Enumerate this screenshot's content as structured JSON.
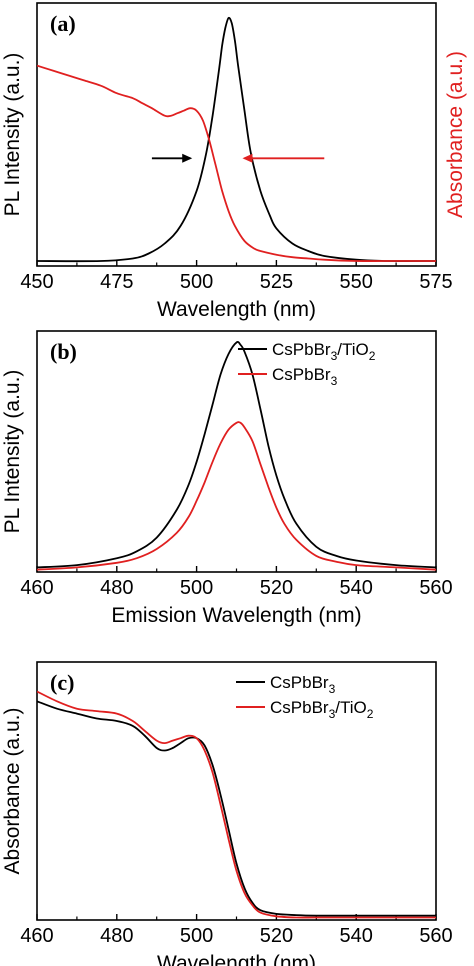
{
  "chart_data": [
    {
      "type": "line",
      "panel_label": "(a)",
      "xlabel": "Wavelength (nm)",
      "ylabel": "PL Intensity (a.u.)",
      "ylabel_right": "Absorbance (a.u.)",
      "xlim": [
        450,
        575
      ],
      "xticks": [
        "450",
        "475",
        "500",
        "525",
        "550",
        "575"
      ],
      "ylim": [
        0,
        1.05
      ],
      "series": [
        {
          "color": "#000000",
          "x": [
            450,
            470,
            480,
            485,
            490,
            495,
            500,
            503,
            505,
            507,
            508,
            509,
            510,
            511,
            512,
            513,
            515,
            517,
            520,
            523,
            525,
            530,
            535,
            540,
            550,
            560,
            575
          ],
          "y": [
            0.02,
            0.02,
            0.03,
            0.05,
            0.09,
            0.16,
            0.3,
            0.45,
            0.6,
            0.78,
            0.88,
            0.95,
            0.99,
            0.97,
            0.9,
            0.8,
            0.62,
            0.45,
            0.3,
            0.2,
            0.15,
            0.09,
            0.06,
            0.04,
            0.025,
            0.02,
            0.02
          ]
        },
        {
          "color": "#e02020",
          "x": [
            450,
            455,
            460,
            465,
            470,
            475,
            480,
            483,
            486,
            490,
            492,
            494,
            496,
            498,
            500,
            502,
            504,
            506,
            508,
            510,
            512,
            515,
            518,
            520,
            525,
            530,
            535,
            540,
            550,
            560,
            575
          ],
          "y": [
            0.8,
            0.78,
            0.76,
            0.74,
            0.72,
            0.69,
            0.67,
            0.65,
            0.63,
            0.6,
            0.6,
            0.61,
            0.62,
            0.63,
            0.62,
            0.58,
            0.5,
            0.4,
            0.3,
            0.22,
            0.16,
            0.1,
            0.07,
            0.06,
            0.045,
            0.035,
            0.03,
            0.025,
            0.02,
            0.02,
            0.02
          ]
        }
      ],
      "annotations": [
        {
          "type": "arrow",
          "direction": "right",
          "color": "#000000",
          "from": [
            486,
            0.43
          ],
          "to": [
            498,
            0.43
          ]
        },
        {
          "type": "arrow",
          "direction": "left",
          "color": "#e02020",
          "from": [
            540,
            0.43
          ],
          "to": [
            515,
            0.43
          ]
        }
      ]
    },
    {
      "type": "line",
      "panel_label": "(b)",
      "xlabel": "Emission Wavelength (nm)",
      "ylabel": "PL Intensity (a.u.)",
      "xlim": [
        460,
        560
      ],
      "xticks": [
        "460",
        "480",
        "500",
        "520",
        "540",
        "560"
      ],
      "ylim": [
        0,
        1.05
      ],
      "legend_position": "top-right",
      "series": [
        {
          "legend": "CsPbBr3/TiO2",
          "color": "#000000",
          "x": [
            460,
            470,
            480,
            485,
            490,
            495,
            498,
            500,
            502,
            504,
            506,
            508,
            510,
            511,
            512,
            514,
            516,
            518,
            520,
            522,
            525,
            530,
            535,
            540,
            550,
            560
          ],
          "y": [
            0.02,
            0.03,
            0.06,
            0.09,
            0.15,
            0.27,
            0.38,
            0.48,
            0.6,
            0.73,
            0.86,
            0.95,
            1.0,
            0.99,
            0.96,
            0.86,
            0.71,
            0.55,
            0.42,
            0.32,
            0.21,
            0.11,
            0.07,
            0.05,
            0.03,
            0.02
          ]
        },
        {
          "legend": "CsPbBr3",
          "color": "#e02020",
          "x": [
            460,
            470,
            480,
            485,
            490,
            495,
            498,
            500,
            502,
            504,
            506,
            508,
            510,
            511,
            512,
            514,
            516,
            518,
            520,
            522,
            525,
            530,
            535,
            540,
            550,
            560
          ],
          "y": [
            0.01,
            0.02,
            0.04,
            0.06,
            0.1,
            0.17,
            0.24,
            0.31,
            0.39,
            0.48,
            0.56,
            0.62,
            0.65,
            0.65,
            0.63,
            0.57,
            0.47,
            0.37,
            0.28,
            0.21,
            0.14,
            0.07,
            0.045,
            0.03,
            0.02,
            0.01
          ]
        }
      ]
    },
    {
      "type": "line",
      "panel_label": "(c)",
      "xlabel": "Wavelength (nm)",
      "ylabel": "Absorbance (a.u.)",
      "xlim": [
        460,
        560
      ],
      "xticks": [
        "460",
        "480",
        "500",
        "520",
        "540",
        "560"
      ],
      "ylim": [
        0,
        1.05
      ],
      "legend_position": "top-right",
      "series": [
        {
          "legend": "CsPbBr3",
          "color": "#000000",
          "x": [
            460,
            465,
            470,
            475,
            480,
            484,
            487,
            490,
            492,
            494,
            496,
            498,
            500,
            502,
            504,
            506,
            508,
            510,
            512,
            514,
            516,
            520,
            525,
            530,
            540,
            550,
            560
          ],
          "y": [
            0.89,
            0.86,
            0.84,
            0.82,
            0.81,
            0.79,
            0.75,
            0.7,
            0.69,
            0.7,
            0.72,
            0.74,
            0.74,
            0.71,
            0.63,
            0.51,
            0.37,
            0.23,
            0.13,
            0.07,
            0.04,
            0.025,
            0.02,
            0.018,
            0.018,
            0.018,
            0.018
          ]
        },
        {
          "legend": "CsPbBr3/TiO2",
          "color": "#e02020",
          "x": [
            460,
            465,
            470,
            475,
            480,
            484,
            487,
            490,
            492,
            494,
            496,
            498,
            500,
            502,
            504,
            506,
            508,
            510,
            512,
            514,
            516,
            520,
            525,
            530,
            540,
            550,
            560
          ],
          "y": [
            0.93,
            0.89,
            0.86,
            0.85,
            0.84,
            0.81,
            0.77,
            0.73,
            0.72,
            0.73,
            0.74,
            0.75,
            0.74,
            0.69,
            0.6,
            0.47,
            0.33,
            0.2,
            0.11,
            0.06,
            0.03,
            0.015,
            0.01,
            0.01,
            0.01,
            0.01,
            0.01
          ]
        }
      ]
    }
  ]
}
